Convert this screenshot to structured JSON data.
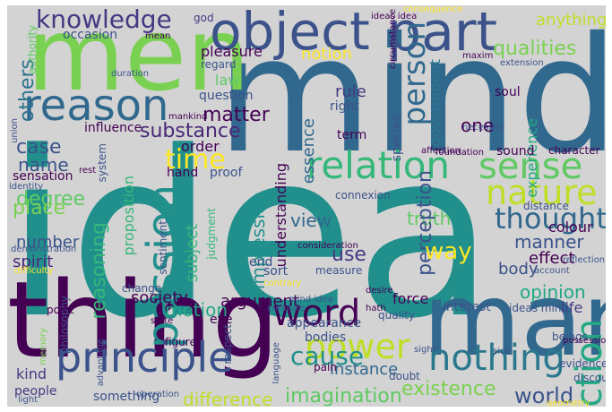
{
  "words": [
    {
      "text": "idea",
      "color": "#21908d"
    },
    {
      "text": "mind",
      "color": "#31688e"
    },
    {
      "text": "men",
      "color": "#7ad151"
    },
    {
      "text": "thing",
      "color": "#440154"
    },
    {
      "text": "man",
      "color": "#31688e"
    },
    {
      "text": "object",
      "color": "#3b528b"
    },
    {
      "text": "part",
      "color": "#3b528b"
    },
    {
      "text": "reason",
      "color": "#31688e"
    },
    {
      "text": "knowledge",
      "color": "#443983"
    },
    {
      "text": "passion",
      "color": "#21908d"
    },
    {
      "text": "relation",
      "color": "#35b779"
    },
    {
      "text": "sense",
      "color": "#5ec962"
    },
    {
      "text": "nature",
      "color": "#bddf26"
    },
    {
      "text": "thought",
      "color": "#31688e"
    },
    {
      "text": "action",
      "color": "#22a884"
    },
    {
      "text": "power",
      "color": "#bddf26"
    },
    {
      "text": "word",
      "color": "#440154"
    },
    {
      "text": "principle",
      "color": "#3b528b"
    },
    {
      "text": "nothing",
      "color": "#2a788e"
    },
    {
      "text": "cause",
      "color": "#21908d"
    },
    {
      "text": "person",
      "color": "#31688e"
    },
    {
      "text": "time",
      "color": "#fde725"
    },
    {
      "text": "qualities",
      "color": "#7ad151"
    },
    {
      "text": "others",
      "color": "#2c728e"
    },
    {
      "text": "degree",
      "color": "#5ec962"
    },
    {
      "text": "case",
      "color": "#3b528b"
    },
    {
      "text": "name",
      "color": "#3b528b"
    },
    {
      "text": "place",
      "color": "#7ad151"
    },
    {
      "text": "substance",
      "color": "#482878"
    },
    {
      "text": "matter",
      "color": "#440154"
    },
    {
      "text": "existence",
      "color": "#7ad151"
    },
    {
      "text": "world",
      "color": "#3b528b"
    },
    {
      "text": "imagination",
      "color": "#5ec962"
    },
    {
      "text": "difference",
      "color": "#bddf26"
    },
    {
      "text": "opinion",
      "color": "#22a884"
    },
    {
      "text": "body",
      "color": "#3b528b"
    },
    {
      "text": "effect",
      "color": "#440154"
    },
    {
      "text": "manner",
      "color": "#3b528b"
    },
    {
      "text": "truth",
      "color": "#5ec962"
    },
    {
      "text": "perception",
      "color": "#3b528b"
    },
    {
      "text": "view",
      "color": "#31688e"
    },
    {
      "text": "use",
      "color": "#443983"
    },
    {
      "text": "way",
      "color": "#fde725"
    },
    {
      "text": "motion",
      "color": "#22a884"
    },
    {
      "text": "argument",
      "color": "#440154"
    },
    {
      "text": "society",
      "color": "#440154"
    },
    {
      "text": "spirit",
      "color": "#482878"
    },
    {
      "text": "number",
      "color": "#3b528b"
    },
    {
      "text": "kind",
      "color": "#443983"
    },
    {
      "text": "instance",
      "color": "#31688e"
    },
    {
      "text": "force",
      "color": "#440154"
    },
    {
      "text": "anything",
      "color": "#bddf26"
    },
    {
      "text": "pleasure",
      "color": "#440154"
    },
    {
      "text": "law",
      "color": "#5ec962"
    },
    {
      "text": "notion",
      "color": "#fde725"
    },
    {
      "text": "rule",
      "color": "#443983"
    },
    {
      "text": "one",
      "color": "#440154"
    },
    {
      "text": "experience",
      "color": "#22a884"
    },
    {
      "text": "god",
      "color": "#443983"
    },
    {
      "text": "order",
      "color": "#440154"
    },
    {
      "text": "understanding",
      "color": "#440154"
    },
    {
      "text": "impression",
      "color": "#21908d"
    },
    {
      "text": "subject",
      "color": "#35b779"
    },
    {
      "text": "reasoning",
      "color": "#35b779"
    },
    {
      "text": "proposition",
      "color": "#35b779"
    },
    {
      "text": "essence",
      "color": "#31688e"
    },
    {
      "text": "government",
      "color": "#2a788e"
    },
    {
      "text": "colour",
      "color": "#440154"
    },
    {
      "text": "interest",
      "color": "#3b528b"
    },
    {
      "text": "life",
      "color": "#443983"
    },
    {
      "text": "people",
      "color": "#443983"
    },
    {
      "text": "something",
      "color": "#3b528b"
    },
    {
      "text": "sensation",
      "color": "#440154"
    },
    {
      "text": "hand",
      "color": "#440154"
    },
    {
      "text": "proof",
      "color": "#3b528b"
    },
    {
      "text": "sort",
      "color": "#3b528b"
    },
    {
      "text": "end",
      "color": "#3b528b"
    },
    {
      "text": "influence",
      "color": "#440154"
    },
    {
      "text": "system",
      "color": "#3b528b"
    },
    {
      "text": "question",
      "color": "#3b528b"
    },
    {
      "text": "regard",
      "color": "#3b528b"
    },
    {
      "text": "occasion",
      "color": "#3b528b"
    },
    {
      "text": "authority",
      "color": "#5ec962"
    },
    {
      "text": "right",
      "color": "#3b528b"
    },
    {
      "text": "term",
      "color": "#440154"
    },
    {
      "text": "species",
      "color": "#3b528b"
    },
    {
      "text": "soul",
      "color": "#440154"
    },
    {
      "text": "sound",
      "color": "#440154"
    },
    {
      "text": "character",
      "color": "#440154"
    },
    {
      "text": "distance",
      "color": "#3b528b"
    },
    {
      "text": "connexion",
      "color": "#3b528b"
    },
    {
      "text": "doubt",
      "color": "#3b528b"
    },
    {
      "text": "appearance",
      "color": "#3b528b"
    },
    {
      "text": "bodies",
      "color": "#3b528b"
    },
    {
      "text": "quality",
      "color": "#3b528b"
    },
    {
      "text": "ideas mind",
      "color": "#3b528b"
    },
    {
      "text": "pain",
      "color": "#440154"
    },
    {
      "text": "philosophy",
      "color": "#3b528b"
    },
    {
      "text": "eye",
      "color": "#440154"
    },
    {
      "text": "figure",
      "color": "#440154"
    },
    {
      "text": "respect",
      "color": "#3b528b"
    },
    {
      "text": "beings",
      "color": "#3b528b"
    },
    {
      "text": "discourse",
      "color": "#3b528b"
    },
    {
      "text": "evidence",
      "color": "#3b528b"
    },
    {
      "text": "measure",
      "color": "#3b528b"
    },
    {
      "text": "judgment",
      "color": "#35b779"
    },
    {
      "text": "sentiment",
      "color": "#3b528b"
    },
    {
      "text": "change",
      "color": "#3b528b"
    },
    {
      "text": "point",
      "color": "#440154"
    },
    {
      "text": "circumstance",
      "color": "#440154"
    },
    {
      "text": "foundation",
      "color": "#440154"
    },
    {
      "text": "affection",
      "color": "#440154"
    },
    {
      "text": "necessity",
      "color": "#3b528b"
    },
    {
      "text": "maxim",
      "color": "#440154"
    },
    {
      "text": "extension",
      "color": "#3b528b"
    },
    {
      "text": "duration",
      "color": "#3b528b"
    },
    {
      "text": "union",
      "color": "#3b528b"
    },
    {
      "text": "mankind",
      "color": "#440154"
    },
    {
      "text": "rest",
      "color": "#440154"
    },
    {
      "text": "identity",
      "color": "#3b528b"
    },
    {
      "text": "demonstration",
      "color": "#3b528b"
    },
    {
      "text": "consideration",
      "color": "#440154"
    },
    {
      "text": "mind idea",
      "color": "#3b528b"
    },
    {
      "text": "desire",
      "color": "#440154"
    },
    {
      "text": "creature",
      "color": "#3b528b"
    },
    {
      "text": "hath",
      "color": "#440154"
    },
    {
      "text": "state",
      "color": "#440154"
    },
    {
      "text": "sight",
      "color": "#3b528b"
    },
    {
      "text": "account",
      "color": "#3b528b"
    },
    {
      "text": "side",
      "color": "#3b528b"
    },
    {
      "text": "reflection",
      "color": "#3b528b"
    },
    {
      "text": "possession",
      "color": "#440154"
    },
    {
      "text": "operation",
      "color": "#3b528b"
    },
    {
      "text": "advantage",
      "color": "#3b528b"
    },
    {
      "text": "language",
      "color": "#3b528b"
    },
    {
      "text": "light",
      "color": "#3b528b"
    },
    {
      "text": "memory",
      "color": "#7ad151"
    },
    {
      "text": "ideas idea",
      "color": "#440154"
    },
    {
      "text": "mean",
      "color": "#440154"
    },
    {
      "text": "consequence",
      "color": "#fde725"
    },
    {
      "text": "geometry",
      "color": "#fde725"
    },
    {
      "text": "difficulty",
      "color": "#fde725"
    },
    {
      "text": "contrary",
      "color": "#fde725"
    }
  ]
}
